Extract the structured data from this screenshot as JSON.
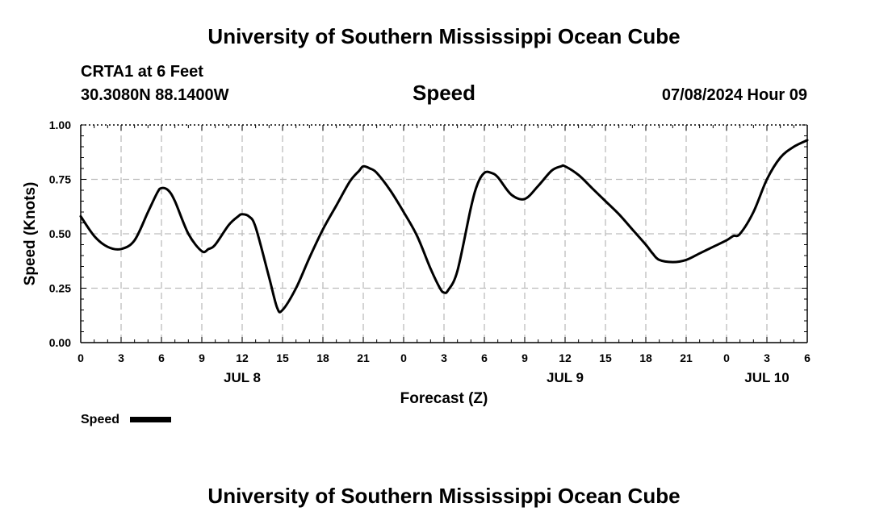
{
  "page": {
    "top_title": "University of Southern Mississippi Ocean Cube",
    "bottom_title": "University of Southern Mississippi Ocean Cube",
    "station": "CRTA1 at 6 Feet",
    "coords": "30.3080N  88.1400W",
    "timestamp": "07/08/2024 Hour 09"
  },
  "chart_data": {
    "type": "line",
    "title": "Speed",
    "xlabel": "Forecast (Z)",
    "ylabel": "Speed (Knots)",
    "xlim": [
      0,
      54
    ],
    "ylim": [
      0,
      1
    ],
    "grid": true,
    "x_ticks": [
      0,
      3,
      6,
      9,
      12,
      15,
      18,
      21,
      24,
      27,
      30,
      33,
      36,
      39,
      42,
      45,
      48,
      51,
      54
    ],
    "x_tick_labels": [
      "0",
      "3",
      "6",
      "9",
      "12",
      "15",
      "18",
      "21",
      "0",
      "3",
      "6",
      "9",
      "12",
      "15",
      "18",
      "21",
      "0",
      "3",
      "6"
    ],
    "y_ticks": [
      0,
      0.25,
      0.5,
      0.75,
      1
    ],
    "y_tick_labels": [
      "0.00",
      "0.25",
      "0.50",
      "0.75",
      "1.00"
    ],
    "date_labels": [
      {
        "x": 12,
        "label": "JUL 8"
      },
      {
        "x": 36,
        "label": "JUL 9"
      },
      {
        "x": 51,
        "label": "JUL 10"
      }
    ],
    "legend": {
      "label": "Speed",
      "position": "bottom-left"
    },
    "series": [
      {
        "name": "Speed",
        "color": "#000000",
        "x": [
          0,
          1,
          2,
          3,
          4,
          5,
          5.7,
          6,
          6.5,
          7,
          8,
          9,
          9.5,
          10,
          11,
          11.7,
          12,
          12.5,
          13,
          14,
          14.6,
          15,
          16,
          17,
          18,
          19,
          20,
          20.7,
          21,
          21.5,
          22,
          23,
          24,
          25,
          26,
          26.7,
          27,
          27.3,
          28,
          29,
          29.5,
          30,
          30.5,
          31,
          32,
          33,
          34,
          35,
          35.7,
          36,
          37,
          38,
          39,
          40,
          41,
          42,
          42.5,
          43,
          44,
          45,
          46,
          47,
          48,
          48.5,
          49,
          50,
          51,
          52,
          53,
          54
        ],
        "values": [
          0.58,
          0.49,
          0.44,
          0.43,
          0.47,
          0.6,
          0.69,
          0.71,
          0.7,
          0.65,
          0.5,
          0.42,
          0.43,
          0.45,
          0.54,
          0.58,
          0.59,
          0.58,
          0.53,
          0.3,
          0.16,
          0.15,
          0.25,
          0.39,
          0.52,
          0.63,
          0.74,
          0.79,
          0.81,
          0.8,
          0.78,
          0.7,
          0.6,
          0.49,
          0.34,
          0.25,
          0.23,
          0.24,
          0.33,
          0.62,
          0.73,
          0.78,
          0.78,
          0.76,
          0.68,
          0.66,
          0.72,
          0.79,
          0.81,
          0.81,
          0.77,
          0.71,
          0.65,
          0.59,
          0.52,
          0.45,
          0.41,
          0.38,
          0.37,
          0.38,
          0.41,
          0.44,
          0.47,
          0.49,
          0.5,
          0.6,
          0.75,
          0.85,
          0.9,
          0.93
        ]
      }
    ]
  }
}
